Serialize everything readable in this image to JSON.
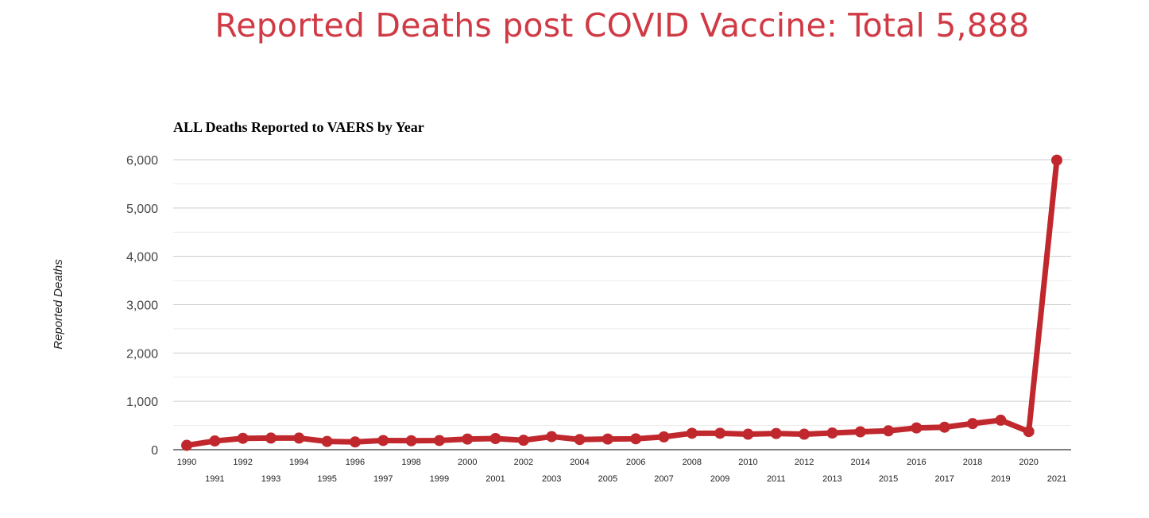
{
  "headline": "Reported Deaths post COVID Vaccine: Total 5,888",
  "colors": {
    "headline": "#d03a45",
    "series": "#c0282d",
    "gridline": "#cccccc",
    "minor_gridline": "#ececec"
  },
  "chart_data": {
    "type": "line",
    "title": "ALL Deaths Reported to VAERS by Year",
    "xlabel": "",
    "ylabel": "Reported Deaths",
    "ylim": [
      0,
      6000
    ],
    "yticks": [
      0,
      1000,
      2000,
      3000,
      4000,
      5000,
      6000
    ],
    "ytick_labels": [
      "0",
      "1,000",
      "2,000",
      "3,000",
      "4,000",
      "5,000",
      "6,000"
    ],
    "grid": true,
    "legend": "none",
    "x": [
      "1990",
      "1991",
      "1992",
      "1993",
      "1994",
      "1995",
      "1996",
      "1997",
      "1998",
      "1999",
      "2000",
      "2001",
      "2002",
      "2003",
      "2004",
      "2005",
      "2006",
      "2007",
      "2008",
      "2009",
      "2010",
      "2011",
      "2012",
      "2013",
      "2014",
      "2015",
      "2016",
      "2017",
      "2018",
      "2019",
      "2020",
      "2021"
    ],
    "series": [
      {
        "values": [
          90,
          180,
          235,
          240,
          240,
          170,
          160,
          190,
          185,
          190,
          220,
          230,
          195,
          270,
          210,
          220,
          225,
          265,
          340,
          340,
          320,
          335,
          320,
          345,
          370,
          390,
          450,
          465,
          540,
          610,
          375,
          5990
        ]
      }
    ]
  }
}
